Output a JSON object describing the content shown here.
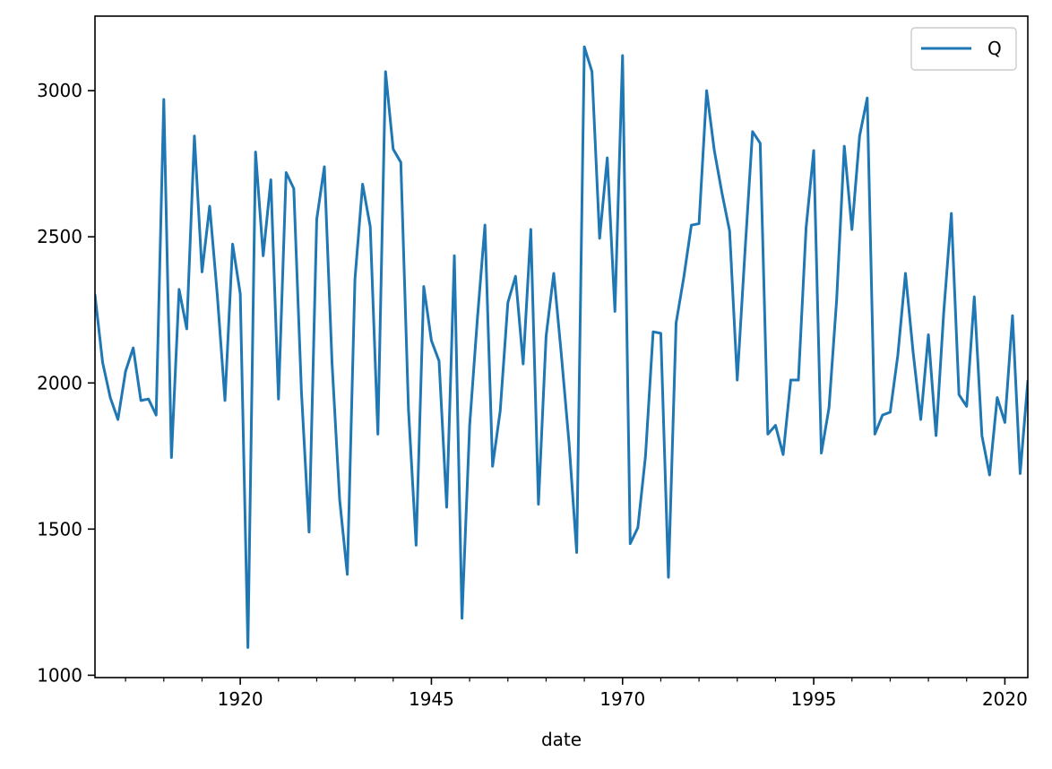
{
  "chart_data": {
    "type": "line",
    "title": "",
    "xlabel": "date",
    "ylabel": "",
    "xlim": [
      1901,
      2023
    ],
    "ylim": [
      992,
      3255
    ],
    "x_ticks": [
      1920,
      1945,
      1970,
      1995,
      2020
    ],
    "y_ticks": [
      1000,
      1500,
      2000,
      2500,
      3000
    ],
    "grid": false,
    "legend_position": "top-right",
    "series": [
      {
        "name": "Q",
        "color": "#1f77b4",
        "x": [
          1901,
          1902,
          1903,
          1904,
          1905,
          1906,
          1907,
          1908,
          1909,
          1910,
          1911,
          1912,
          1913,
          1914,
          1915,
          1916,
          1917,
          1918,
          1919,
          1920,
          1921,
          1922,
          1923,
          1924,
          1925,
          1926,
          1927,
          1928,
          1929,
          1930,
          1931,
          1932,
          1933,
          1934,
          1935,
          1936,
          1937,
          1938,
          1939,
          1940,
          1941,
          1942,
          1943,
          1944,
          1945,
          1946,
          1947,
          1948,
          1949,
          1950,
          1951,
          1952,
          1953,
          1954,
          1955,
          1956,
          1957,
          1958,
          1959,
          1960,
          1961,
          1962,
          1963,
          1964,
          1965,
          1966,
          1967,
          1968,
          1969,
          1970,
          1971,
          1972,
          1973,
          1974,
          1975,
          1976,
          1977,
          1978,
          1979,
          1980,
          1981,
          1982,
          1983,
          1984,
          1985,
          1986,
          1987,
          1988,
          1989,
          1990,
          1991,
          1992,
          1993,
          1994,
          1995,
          1996,
          1997,
          1998,
          1999,
          2000,
          2001,
          2002,
          2003,
          2004,
          2005,
          2006,
          2007,
          2008,
          2009,
          2010,
          2011,
          2012,
          2013,
          2014,
          2015,
          2016,
          2017,
          2018,
          2019,
          2020,
          2021,
          2022,
          2023
        ],
        "values": [
          2300,
          2070,
          1950,
          1875,
          2040,
          2120,
          1940,
          1945,
          1890,
          2970,
          1745,
          2320,
          2185,
          2845,
          2380,
          2605,
          2300,
          1940,
          2475,
          2305,
          1095,
          2790,
          2435,
          2695,
          1945,
          2720,
          2665,
          1970,
          1490,
          2560,
          2740,
          2070,
          1600,
          1345,
          2355,
          2680,
          2535,
          1825,
          3065,
          2800,
          2755,
          1910,
          1445,
          2330,
          2145,
          2075,
          1575,
          2435,
          1195,
          1855,
          2215,
          2540,
          1715,
          1905,
          2275,
          2365,
          2065,
          2525,
          1585,
          2160,
          2375,
          2095,
          1795,
          1420,
          3150,
          3065,
          2495,
          2770,
          2245,
          3120,
          1450,
          1505,
          1750,
          2175,
          2170,
          1335,
          2205,
          2360,
          2540,
          2545,
          3000,
          2795,
          2650,
          2520,
          2010,
          2445,
          2860,
          2820,
          1825,
          1855,
          1755,
          2010,
          2010,
          2530,
          2795,
          1760,
          1915,
          2285,
          2810,
          2525,
          2845,
          2975,
          1825,
          1890,
          1900,
          2095,
          2375,
          2105,
          1875,
          2165,
          1820,
          2240,
          2580,
          1960,
          1920,
          2295,
          1820,
          1685,
          1950,
          1865,
          2230,
          1690,
          2005
        ]
      }
    ]
  }
}
